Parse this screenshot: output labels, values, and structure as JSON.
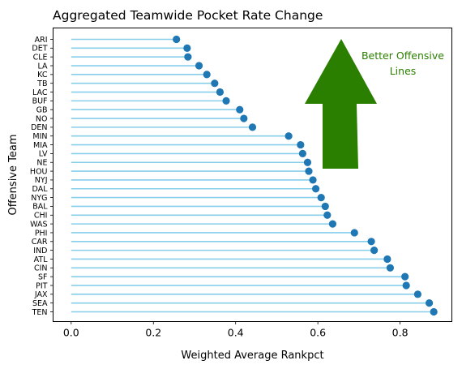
{
  "chart_data": {
    "type": "lollipop",
    "orientation": "horizontal",
    "title": "Aggregated Teamwide Pocket Rate Change",
    "xlabel": "Weighted Average Rankpct",
    "ylabel": "Offensive Team",
    "xlim": [
      -0.044,
      0.926
    ],
    "x_ticks": [
      "0.0",
      "0.2",
      "0.4",
      "0.6",
      "0.8"
    ],
    "x_tick_values": [
      0.0,
      0.2,
      0.4,
      0.6,
      0.8
    ],
    "grid": false,
    "stem_color": "#87ceeb",
    "dot_color": "#1f77b4",
    "annotation": {
      "text_lines": [
        "Better Offensive",
        "Lines"
      ],
      "text_color": "#2a7f00",
      "arrow_color": "#2a7f00",
      "arrow_direction": "up"
    },
    "categories": [
      "ARI",
      "DET",
      "CLE",
      "LA",
      "KC",
      "TB",
      "LAC",
      "BUF",
      "GB",
      "NO",
      "DEN",
      "MIN",
      "MIA",
      "LV",
      "NE",
      "HOU",
      "NYJ",
      "DAL",
      "NYG",
      "BAL",
      "CHI",
      "WAS",
      "PHI",
      "CAR",
      "IND",
      "ATL",
      "CIN",
      "SF",
      "PIT",
      "JAX",
      "SEA",
      "TEN"
    ],
    "values": [
      0.256,
      0.282,
      0.284,
      0.311,
      0.33,
      0.349,
      0.362,
      0.377,
      0.41,
      0.42,
      0.441,
      0.529,
      0.558,
      0.563,
      0.575,
      0.578,
      0.588,
      0.595,
      0.608,
      0.618,
      0.623,
      0.636,
      0.689,
      0.73,
      0.737,
      0.769,
      0.776,
      0.812,
      0.815,
      0.843,
      0.871,
      0.882
    ]
  }
}
